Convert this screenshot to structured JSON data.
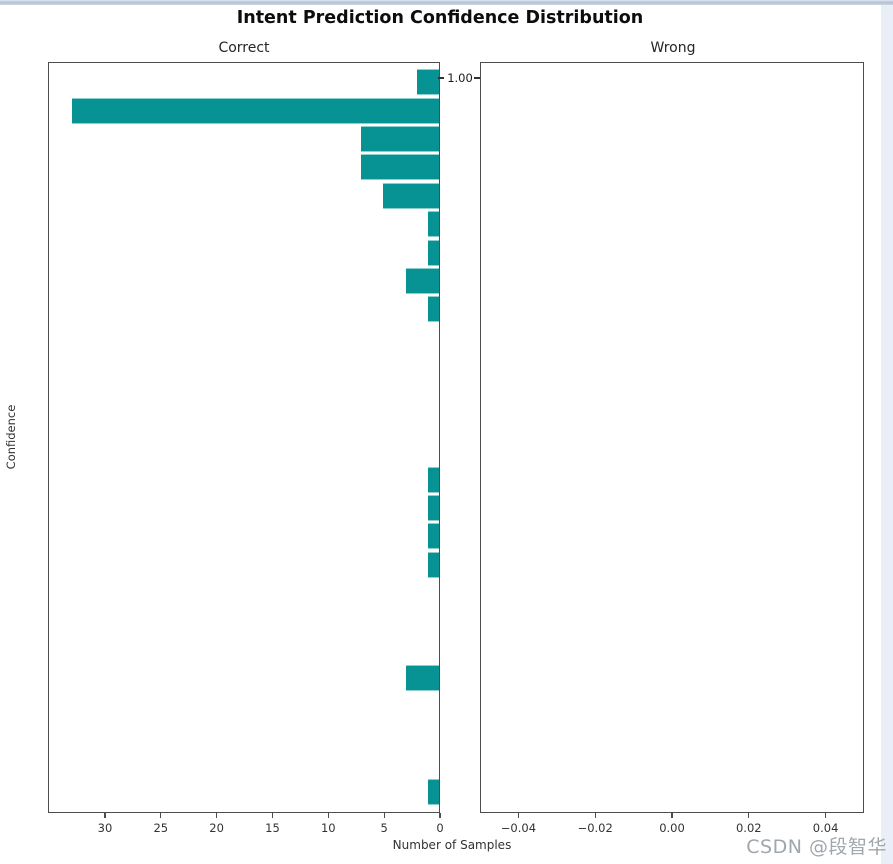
{
  "figure": {
    "title": "Intent Prediction Confidence Distribution",
    "xlabel": "Number of Samples",
    "ylabel": "Confidence",
    "watermark": "CSDN @段智华",
    "colors": {
      "bar_fill": "#079394",
      "bar_edge": "rgba(255,255,255,0.55)",
      "spine": "#4d4d4d",
      "top_strip": "#b3c1d6",
      "right_strip": "#e9eef7",
      "watermark": "#a0a6ae"
    }
  },
  "chart_data": {
    "type": "bar",
    "orientation": "horizontal",
    "title": "Intent Prediction Confidence Distribution",
    "xlabel": "Number of Samples",
    "ylabel": "Confidence",
    "grid": false,
    "legend": false,
    "subplots": [
      {
        "name": "correct",
        "title": "Correct",
        "x_axis": {
          "reversed": true,
          "min": 0,
          "max": 35.1,
          "tick_values": [
            30,
            25,
            20,
            15,
            10,
            5,
            0
          ],
          "tick_labels": [
            "30",
            "25",
            "20",
            "15",
            "10",
            "5",
            "0"
          ]
        },
        "y_axis": {
          "label_side": "right",
          "tick_labels": [
            "1.00"
          ],
          "tick_pos_frac": [
            0.0213
          ]
        },
        "n_bins": 26,
        "bin_counts_top_to_bottom": [
          2,
          33,
          7,
          7,
          5,
          1,
          1,
          3,
          1,
          0,
          0,
          0,
          0,
          0,
          1,
          1,
          1,
          1,
          0,
          0,
          0,
          3,
          0,
          0,
          0,
          1
        ],
        "top_bin_confidence": "1.00"
      },
      {
        "name": "wrong",
        "title": "Wrong",
        "x_axis": {
          "reversed": false,
          "min": -0.05,
          "max": 0.05,
          "tick_values": [
            -0.04,
            -0.02,
            0.0,
            0.02,
            0.04
          ],
          "tick_labels": [
            "−0.04",
            "−0.02",
            "0.00",
            "0.02",
            "0.04"
          ]
        },
        "n_bins": 0,
        "bin_counts_top_to_bottom": []
      }
    ]
  }
}
